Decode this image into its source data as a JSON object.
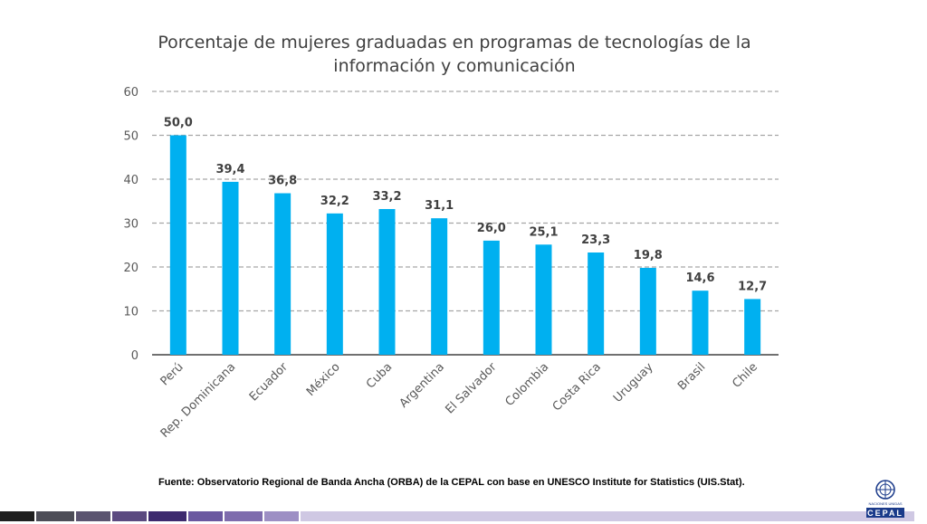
{
  "chart_data": {
    "type": "bar",
    "title_lines": [
      "Porcentaje de mujeres graduadas en programas de tecnologías de la",
      "información y comunicación"
    ],
    "categories": [
      "Perú",
      "Rep. Dominicana",
      "Ecuador",
      "México",
      "Cuba",
      "Argentina",
      "El Salvador",
      "Colombia",
      "Costa Rica",
      "Uruguay",
      "Brasil",
      "Chile"
    ],
    "values": [
      50.0,
      39.4,
      36.8,
      32.2,
      33.2,
      31.1,
      26.0,
      25.1,
      23.3,
      19.8,
      14.6,
      12.7
    ],
    "value_labels": [
      "50,0",
      "39,4",
      "36,8",
      "32,2",
      "33,2",
      "31,1",
      "26,0",
      "25,1",
      "23,3",
      "19,8",
      "14,6",
      "12,7"
    ],
    "ylim": [
      0,
      60
    ],
    "yticks": [
      0,
      10,
      20,
      30,
      40,
      50,
      60
    ],
    "grid": "dashed",
    "bar_color": "#00b0f0",
    "xlabel": "",
    "ylabel": ""
  },
  "source_text": "Fuente: Observatorio Regional de Banda Ancha (ORBA) de la CEPAL con base en UNESCO Institute for Statistics (UIS.Stat).",
  "logo": {
    "text": "CEPAL",
    "subtext": "NACIONES UNIDAS",
    "icon": "un-emblem-icon"
  },
  "footer_colors": [
    "#1f1f1f",
    "#4d4d57",
    "#5b5470",
    "#5b4a80",
    "#3d2a6e",
    "#6a58a0",
    "#7e6cad",
    "#9d8fc4",
    "#cfc8e3"
  ]
}
